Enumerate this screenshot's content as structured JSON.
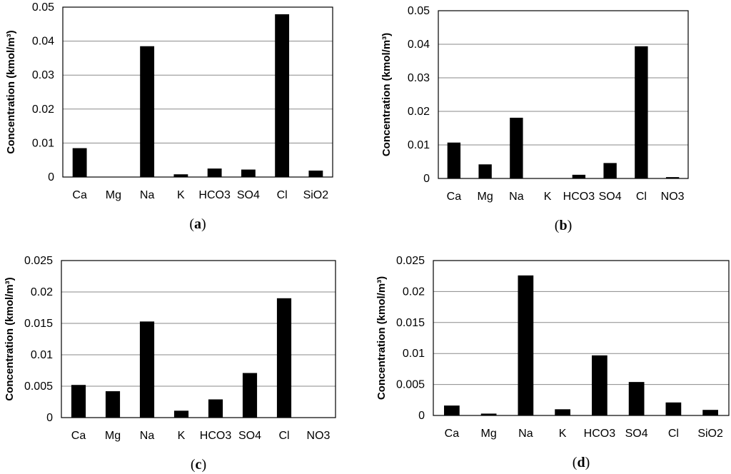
{
  "chart_data": [
    {
      "type": "bar",
      "panel_label": "a",
      "caption_text": "(a)",
      "ylabel": "Concentration (kmol/m³)",
      "xlabel": "",
      "ylim": [
        0,
        0.05
      ],
      "yticks": [
        "0",
        "0.01",
        "0.02",
        "0.03",
        "0.04",
        "0.05"
      ],
      "grid": true,
      "categories": [
        "Ca",
        "Mg",
        "Na",
        "K",
        "HCO3",
        "SO4",
        "Cl",
        "SiO2"
      ],
      "values": [
        0.0085,
        0.0001,
        0.0385,
        0.0008,
        0.0025,
        0.0022,
        0.0479,
        0.0019
      ]
    },
    {
      "type": "bar",
      "panel_label": "b",
      "caption_text": "(b)",
      "ylabel": "Concentration (kmol/m³)",
      "xlabel": "",
      "ylim": [
        0,
        0.05
      ],
      "yticks": [
        "0",
        "0.01",
        "0.02",
        "0.03",
        "0.04",
        "0.05"
      ],
      "grid": true,
      "categories": [
        "Ca",
        "Mg",
        "Na",
        "K",
        "HCO3",
        "SO4",
        "Cl",
        "NO3"
      ],
      "values": [
        0.0107,
        0.0042,
        0.0181,
        0.0,
        0.0011,
        0.0046,
        0.0394,
        0.0004
      ]
    },
    {
      "type": "bar",
      "panel_label": "c",
      "caption_text": "(c)",
      "ylabel": "Concentration (kmol/m³)",
      "xlabel": "",
      "ylim": [
        0,
        0.025
      ],
      "yticks": [
        "0",
        "0.005",
        "0.01",
        "0.015",
        "0.02",
        "0.025"
      ],
      "grid": true,
      "categories": [
        "Ca",
        "Mg",
        "Na",
        "K",
        "HCO3",
        "SO4",
        "Cl",
        "NO3"
      ],
      "values": [
        0.0052,
        0.0042,
        0.0153,
        0.0011,
        0.0029,
        0.0071,
        0.019,
        0.0
      ]
    },
    {
      "type": "bar",
      "panel_label": "d",
      "caption_text": "(d)",
      "ylabel": "Concentration (kmol/m³)",
      "xlabel": "",
      "ylim": [
        0,
        0.025
      ],
      "yticks": [
        "0",
        "0.005",
        "0.01",
        "0.015",
        "0.02",
        "0.025"
      ],
      "grid": true,
      "categories": [
        "Ca",
        "Mg",
        "Na",
        "K",
        "HCO3",
        "SO4",
        "Cl",
        "SiO2"
      ],
      "values": [
        0.0016,
        0.0003,
        0.0226,
        0.001,
        0.0097,
        0.0054,
        0.0021,
        0.0009
      ]
    }
  ]
}
